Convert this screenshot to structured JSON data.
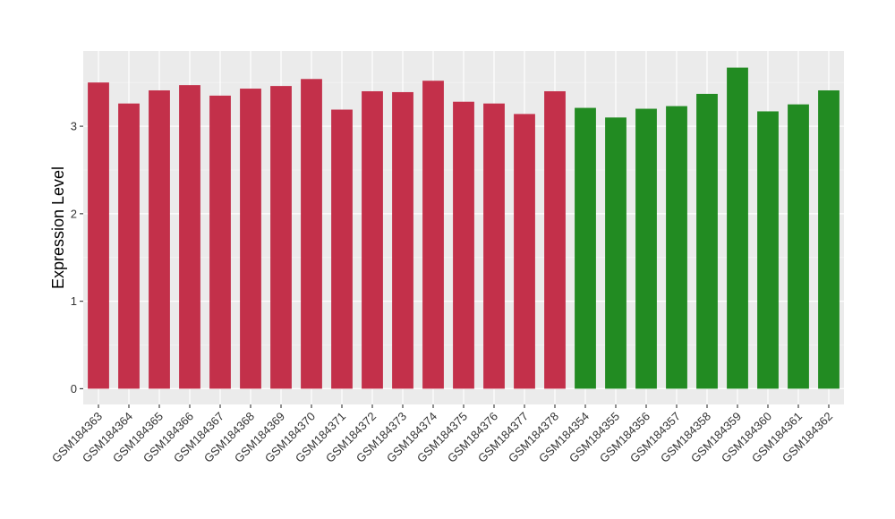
{
  "chart_data": {
    "type": "bar",
    "ylabel": "Expression Level",
    "ylim": [
      -0.18,
      3.86
    ],
    "yticks": [
      0,
      1,
      2,
      3
    ],
    "grid": true,
    "groups": [
      {
        "color": "#c3304a",
        "count": 16
      },
      {
        "color": "#228b22",
        "count": 9
      }
    ],
    "categories": [
      "GSM184363",
      "GSM184364",
      "GSM184365",
      "GSM184366",
      "GSM184367",
      "GSM184368",
      "GSM184369",
      "GSM184370",
      "GSM184371",
      "GSM184372",
      "GSM184373",
      "GSM184374",
      "GSM184375",
      "GSM184376",
      "GSM184377",
      "GSM184378",
      "GSM184354",
      "GSM184355",
      "GSM184356",
      "GSM184357",
      "GSM184358",
      "GSM184359",
      "GSM184360",
      "GSM184361",
      "GSM184362"
    ],
    "values": [
      3.5,
      3.26,
      3.41,
      3.47,
      3.35,
      3.43,
      3.46,
      3.54,
      3.19,
      3.4,
      3.39,
      3.52,
      3.28,
      3.26,
      3.14,
      3.4,
      3.21,
      3.1,
      3.2,
      3.23,
      3.37,
      3.67,
      3.17,
      3.25,
      3.41
    ]
  }
}
